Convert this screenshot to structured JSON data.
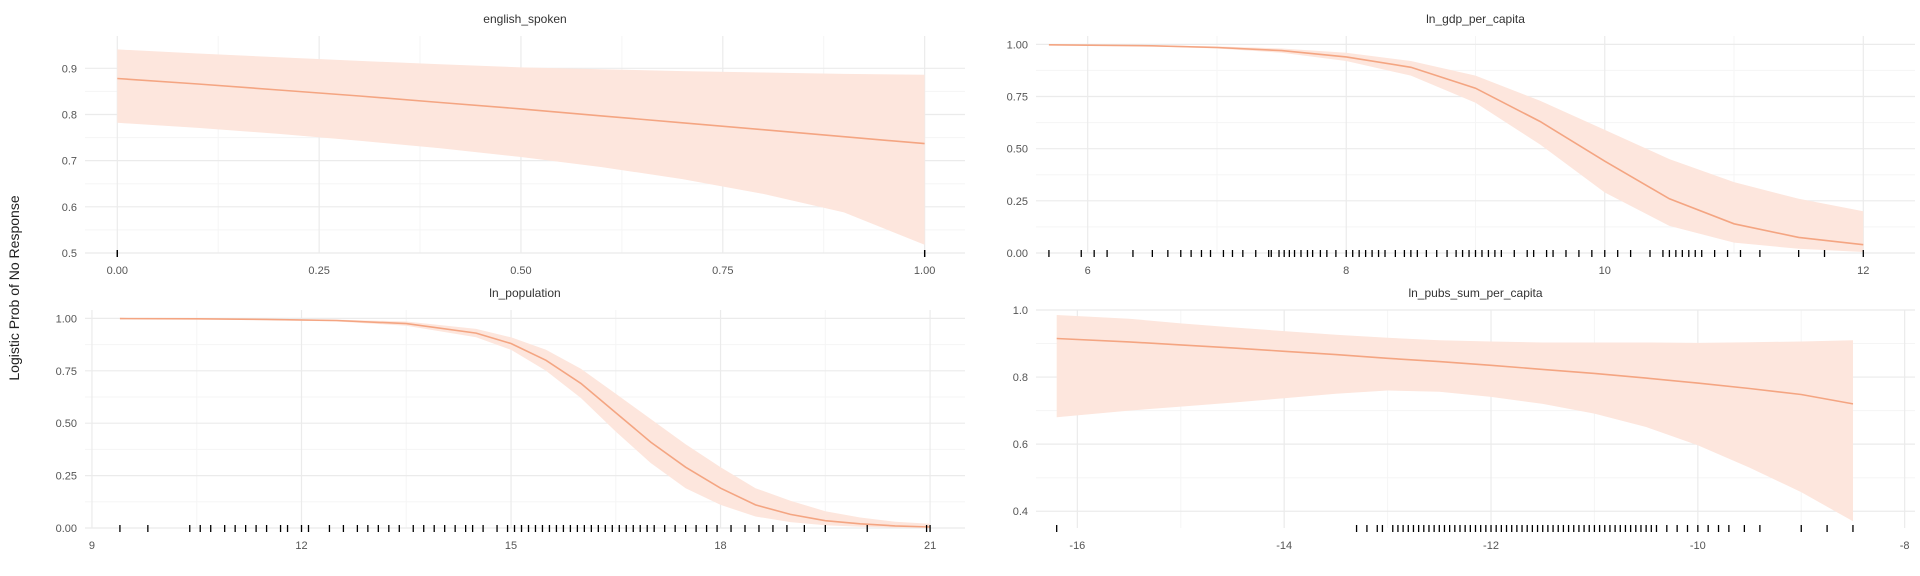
{
  "chart_data": {
    "type": "line",
    "ylabel": "Logistic Prob of No Response",
    "colors": {
      "line": "#f4a582",
      "band": "#fde6dd",
      "rug": "#000000",
      "grid": "#ebebeb",
      "grid_minor": "#f5f5f5"
    },
    "panels": [
      {
        "title": "english_spoken",
        "xlim": [
          -0.04,
          1.05
        ],
        "ylim": [
          0.5,
          0.97
        ],
        "xticks": [
          0.0,
          0.25,
          0.5,
          0.75,
          1.0
        ],
        "xtick_labels": [
          "0.00",
          "0.25",
          "0.50",
          "0.75",
          "1.00"
        ],
        "yticks": [
          0.5,
          0.6,
          0.7,
          0.8,
          0.9
        ],
        "ytick_labels": [
          "0.5",
          "0.6",
          "0.7",
          "0.8",
          "0.9"
        ],
        "x": [
          0.0,
          0.1,
          0.2,
          0.3,
          0.4,
          0.5,
          0.6,
          0.7,
          0.8,
          0.9,
          1.0
        ],
        "y": [
          0.878,
          0.866,
          0.853,
          0.84,
          0.826,
          0.812,
          0.797,
          0.782,
          0.767,
          0.752,
          0.737
        ],
        "lower": [
          0.782,
          0.771,
          0.758,
          0.743,
          0.727,
          0.708,
          0.686,
          0.66,
          0.628,
          0.588,
          0.518
        ],
        "upper": [
          0.941,
          0.932,
          0.924,
          0.916,
          0.909,
          0.902,
          0.898,
          0.894,
          0.891,
          0.888,
          0.886
        ],
        "rug": [
          0.0,
          0.0,
          1.0,
          1.0
        ]
      },
      {
        "title": "ln_gdp_per_capita",
        "xlim": [
          5.6,
          12.4
        ],
        "ylim": [
          0.0,
          1.04
        ],
        "xticks": [
          6,
          8,
          10,
          12
        ],
        "xtick_labels": [
          "6",
          "8",
          "10",
          "12"
        ],
        "yticks": [
          0.0,
          0.25,
          0.5,
          0.75,
          1.0
        ],
        "ytick_labels": [
          "0.00",
          "0.25",
          "0.50",
          "0.75",
          "1.00"
        ],
        "x": [
          5.7,
          6.5,
          7.0,
          7.5,
          8.0,
          8.5,
          9.0,
          9.5,
          10.0,
          10.5,
          11.0,
          11.5,
          12.0
        ],
        "y": [
          0.998,
          0.993,
          0.985,
          0.97,
          0.94,
          0.89,
          0.79,
          0.63,
          0.44,
          0.26,
          0.14,
          0.075,
          0.04
        ],
        "lower": [
          0.997,
          0.99,
          0.98,
          0.96,
          0.92,
          0.85,
          0.72,
          0.52,
          0.29,
          0.13,
          0.05,
          0.02,
          0.005
        ],
        "upper": [
          0.999,
          0.996,
          0.99,
          0.98,
          0.96,
          0.92,
          0.85,
          0.73,
          0.59,
          0.45,
          0.34,
          0.26,
          0.2
        ],
        "rug": [
          5.7,
          5.95,
          6.05,
          6.15,
          6.35,
          6.5,
          6.62,
          6.72,
          6.8,
          6.88,
          6.95,
          7.05,
          7.12,
          7.2,
          7.3,
          7.4,
          7.42,
          7.48,
          7.52,
          7.56,
          7.6,
          7.65,
          7.7,
          7.74,
          7.8,
          7.85,
          7.92,
          8.0,
          8.05,
          8.1,
          8.15,
          8.2,
          8.25,
          8.3,
          8.38,
          8.45,
          8.5,
          8.55,
          8.62,
          8.7,
          8.78,
          8.85,
          8.9,
          8.95,
          9.0,
          9.05,
          9.1,
          9.15,
          9.2,
          9.3,
          9.4,
          9.45,
          9.55,
          9.6,
          9.7,
          9.8,
          9.9,
          10.0,
          10.1,
          10.2,
          10.35,
          10.45,
          10.5,
          10.55,
          10.6,
          10.65,
          10.7,
          10.75,
          10.85,
          10.95,
          11.05,
          11.2,
          11.5,
          11.7,
          12.0
        ]
      },
      {
        "title": "ln_population",
        "xlim": [
          8.9,
          21.5
        ],
        "ylim": [
          0.0,
          1.04
        ],
        "xticks": [
          9,
          12,
          15,
          18,
          21
        ],
        "xtick_labels": [
          "9",
          "12",
          "15",
          "18",
          "21"
        ],
        "yticks": [
          0.0,
          0.25,
          0.5,
          0.75,
          1.0
        ],
        "ytick_labels": [
          "0.00",
          "0.25",
          "0.50",
          "0.75",
          "1.00"
        ],
        "x": [
          9.4,
          10.5,
          11.5,
          12.5,
          13.5,
          14.5,
          15.0,
          15.5,
          16.0,
          16.5,
          17.0,
          17.5,
          18.0,
          18.5,
          19.0,
          19.5,
          20.0,
          20.5,
          21.0
        ],
        "y": [
          0.999,
          0.998,
          0.995,
          0.99,
          0.975,
          0.93,
          0.88,
          0.8,
          0.69,
          0.55,
          0.41,
          0.29,
          0.19,
          0.11,
          0.065,
          0.035,
          0.02,
          0.01,
          0.005
        ],
        "lower": [
          0.998,
          0.996,
          0.992,
          0.985,
          0.965,
          0.91,
          0.85,
          0.75,
          0.62,
          0.46,
          0.31,
          0.19,
          0.11,
          0.055,
          0.028,
          0.013,
          0.006,
          0.002,
          0.001
        ],
        "upper": [
          1.0,
          0.999,
          0.997,
          0.994,
          0.985,
          0.95,
          0.91,
          0.85,
          0.76,
          0.64,
          0.52,
          0.4,
          0.29,
          0.19,
          0.13,
          0.08,
          0.05,
          0.03,
          0.02
        ],
        "rug": [
          9.4,
          9.8,
          10.4,
          10.55,
          10.7,
          10.9,
          11.05,
          11.2,
          11.35,
          11.5,
          11.7,
          11.8,
          12.0,
          12.1,
          12.4,
          12.6,
          12.8,
          12.95,
          13.1,
          13.25,
          13.4,
          13.6,
          13.75,
          13.9,
          14.05,
          14.2,
          14.35,
          14.45,
          14.6,
          14.8,
          14.95,
          15.05,
          15.15,
          15.25,
          15.35,
          15.45,
          15.55,
          15.65,
          15.75,
          15.85,
          15.95,
          16.05,
          16.15,
          16.25,
          16.35,
          16.45,
          16.55,
          16.65,
          16.75,
          16.85,
          16.95,
          17.05,
          17.2,
          17.35,
          17.5,
          17.65,
          17.8,
          17.95,
          18.15,
          18.35,
          18.55,
          18.75,
          18.95,
          19.2,
          19.5,
          20.1,
          20.95,
          21.0
        ]
      },
      {
        "title": "ln_pubs_sum_per_capita",
        "xlim": [
          -16.4,
          -7.9
        ],
        "ylim": [
          0.35,
          1.0
        ],
        "xticks": [
          -16,
          -14,
          -12,
          -10,
          -8
        ],
        "xtick_labels": [
          "-16",
          "-14",
          "-12",
          "-10",
          "-8"
        ],
        "yticks": [
          0.4,
          0.6,
          0.8,
          1.0
        ],
        "ytick_labels": [
          "0.4",
          "0.6",
          "0.8",
          "1.0"
        ],
        "x": [
          -16.2,
          -15.5,
          -15.0,
          -14.5,
          -14.0,
          -13.5,
          -13.0,
          -12.5,
          -12.0,
          -11.5,
          -11.0,
          -10.5,
          -10.0,
          -9.5,
          -9.0,
          -8.5
        ],
        "y": [
          0.915,
          0.905,
          0.896,
          0.887,
          0.877,
          0.867,
          0.856,
          0.846,
          0.835,
          0.823,
          0.811,
          0.797,
          0.782,
          0.766,
          0.748,
          0.72
        ],
        "lower": [
          0.68,
          0.7,
          0.712,
          0.724,
          0.737,
          0.75,
          0.76,
          0.756,
          0.741,
          0.72,
          0.691,
          0.651,
          0.597,
          0.53,
          0.457,
          0.37
        ],
        "upper": [
          0.985,
          0.974,
          0.96,
          0.948,
          0.937,
          0.926,
          0.917,
          0.91,
          0.906,
          0.903,
          0.903,
          0.903,
          0.902,
          0.904,
          0.906,
          0.91
        ],
        "rug": [
          -16.2,
          -13.3,
          -13.2,
          -13.1,
          -13.05,
          -12.95,
          -12.9,
          -12.85,
          -12.8,
          -12.75,
          -12.7,
          -12.65,
          -12.6,
          -12.55,
          -12.5,
          -12.45,
          -12.4,
          -12.35,
          -12.3,
          -12.25,
          -12.2,
          -12.15,
          -12.1,
          -12.05,
          -12.0,
          -11.95,
          -11.9,
          -11.85,
          -11.8,
          -11.75,
          -11.7,
          -11.65,
          -11.6,
          -11.55,
          -11.5,
          -11.45,
          -11.4,
          -11.35,
          -11.3,
          -11.25,
          -11.2,
          -11.15,
          -11.1,
          -11.05,
          -11.0,
          -10.95,
          -10.9,
          -10.85,
          -10.8,
          -10.75,
          -10.7,
          -10.65,
          -10.6,
          -10.55,
          -10.5,
          -10.45,
          -10.4,
          -10.3,
          -10.2,
          -10.1,
          -10.0,
          -9.9,
          -9.8,
          -9.7,
          -9.55,
          -9.4,
          -9.0,
          -8.75,
          -8.5
        ]
      }
    ]
  }
}
